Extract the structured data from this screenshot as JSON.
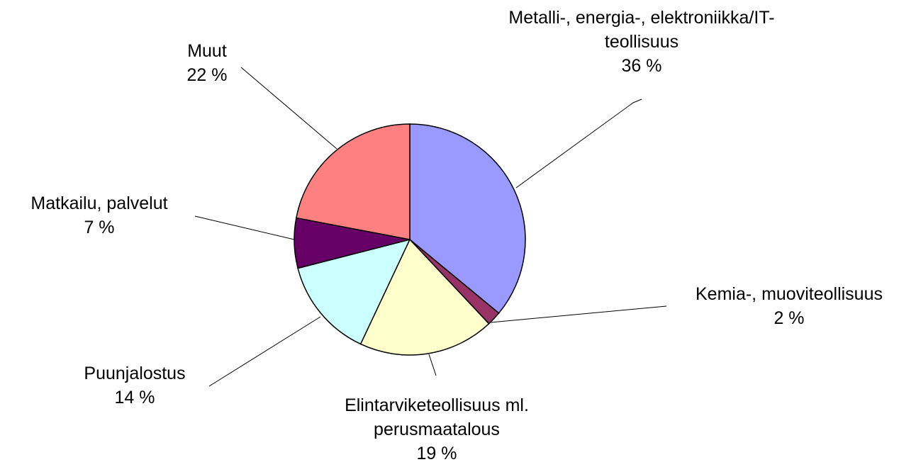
{
  "chart_data": {
    "type": "pie",
    "categories": [
      "Metalli-, energia-, elektroniikka/IT-teollisuus",
      "Kemia-, muoviteollisuus",
      "Elintarviketeollisuus ml. perusmaatalous",
      "Puunjalostus",
      "Matkailu, palvelut",
      "Muut"
    ],
    "values": [
      36,
      2,
      19,
      14,
      7,
      22
    ],
    "value_labels": [
      "36 %",
      "2 %",
      "19 %",
      "14 %",
      "7 %",
      "22 %"
    ],
    "colors": [
      "#9999ff",
      "#993366",
      "#ffffcc",
      "#ccffff",
      "#660066",
      "#ff8080"
    ]
  }
}
